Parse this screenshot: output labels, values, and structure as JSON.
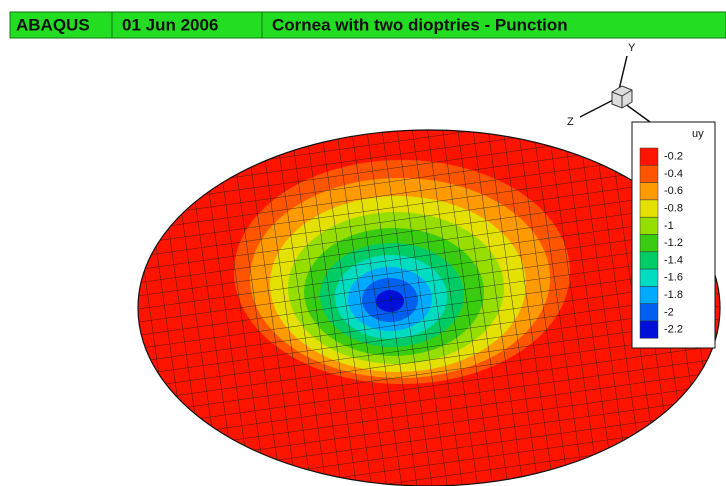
{
  "header": {
    "fields": [
      "ABAQUS",
      "01 Jun 2006",
      "Cornea with two dioptries - Punction"
    ]
  },
  "triad": {
    "y_label": "Y",
    "z_label": "Z"
  },
  "legend": {
    "title": "uy",
    "items": [
      {
        "label": "-0.2",
        "color": "#ff1400"
      },
      {
        "label": "-0.4",
        "color": "#ff5500"
      },
      {
        "label": "-0.6",
        "color": "#ff9a00"
      },
      {
        "label": "-0.8",
        "color": "#e4e000"
      },
      {
        "label": "-1",
        "color": "#96de00"
      },
      {
        "label": "-1.2",
        "color": "#3acc10"
      },
      {
        "label": "-1.4",
        "color": "#00cc66"
      },
      {
        "label": "-1.6",
        "color": "#00dcc0"
      },
      {
        "label": "-1.8",
        "color": "#00aaff"
      },
      {
        "label": "-2",
        "color": "#0060f0"
      },
      {
        "label": "-2.2",
        "color": "#0010d8"
      }
    ]
  }
}
